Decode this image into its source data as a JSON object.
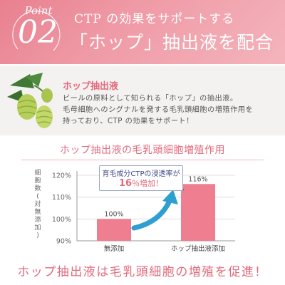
{
  "header": {
    "point_label": "Point",
    "point_number": "02",
    "line1": "CTP の効果をサポートする",
    "line2": "「ホップ」抽出液を配合"
  },
  "info": {
    "title": "ホップ抽出液",
    "lines": [
      "ビールの原料として知られる「ホップ」の抽出液。",
      "毛母細胞へのシグナルを発する毛乳頭細胞の増殖作用を",
      "持っており、CTP の効果をサポート！"
    ]
  },
  "chart_title": "ホップ抽出液の毛乳頭細胞増殖作用",
  "callout": {
    "line1": "育毛成分CTPの浸透率が",
    "percent": "16",
    "suffix": "％増加！"
  },
  "chart_data": {
    "type": "bar",
    "ylabel": "細胞数（対無添加）",
    "categories": [
      "無添加",
      "ホップ抽出液添加"
    ],
    "values": [
      100,
      116
    ],
    "value_labels": [
      "100%",
      "116%"
    ],
    "ylim": [
      90,
      120
    ],
    "yticks": [
      90,
      100,
      110,
      120
    ],
    "ytick_labels": [
      "90%",
      "100%",
      "110%",
      "120%"
    ],
    "bar_color": "#ef7f90",
    "axis_break": true,
    "arrow_color": "#2e9fd0"
  },
  "footer": "ホップ抽出液は毛乳頭細胞の増殖を促進！",
  "colors": {
    "accent": "#e26a7d",
    "header_bg": "#ed8e9c",
    "band_bg": "#f4f1f1"
  }
}
